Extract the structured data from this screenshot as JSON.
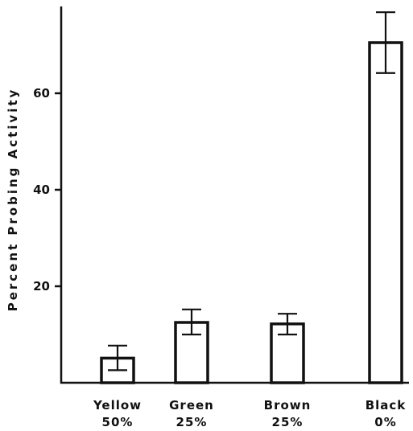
{
  "chart_data": {
    "type": "bar",
    "title": "",
    "xlabel": "",
    "ylabel": "Percent   Probing   Activity",
    "ylim": [
      0,
      67
    ],
    "yticks": [
      20,
      40,
      60
    ],
    "categories": [
      {
        "name": "Yellow",
        "sub": "50%"
      },
      {
        "name": "Green",
        "sub": "25%"
      },
      {
        "name": "Brown",
        "sub": "25%"
      },
      {
        "name": "Black",
        "sub": "0%"
      }
    ],
    "values": [
      5.1,
      12.5,
      12.2,
      70.5
    ],
    "error_low": [
      2.6,
      10.0,
      10.0,
      64.2
    ],
    "error_high": [
      7.7,
      15.2,
      14.3,
      76.8
    ],
    "grid": false,
    "legend": "none",
    "colors": {
      "bar_fill": "#ffffff",
      "stroke": "#111111"
    }
  }
}
